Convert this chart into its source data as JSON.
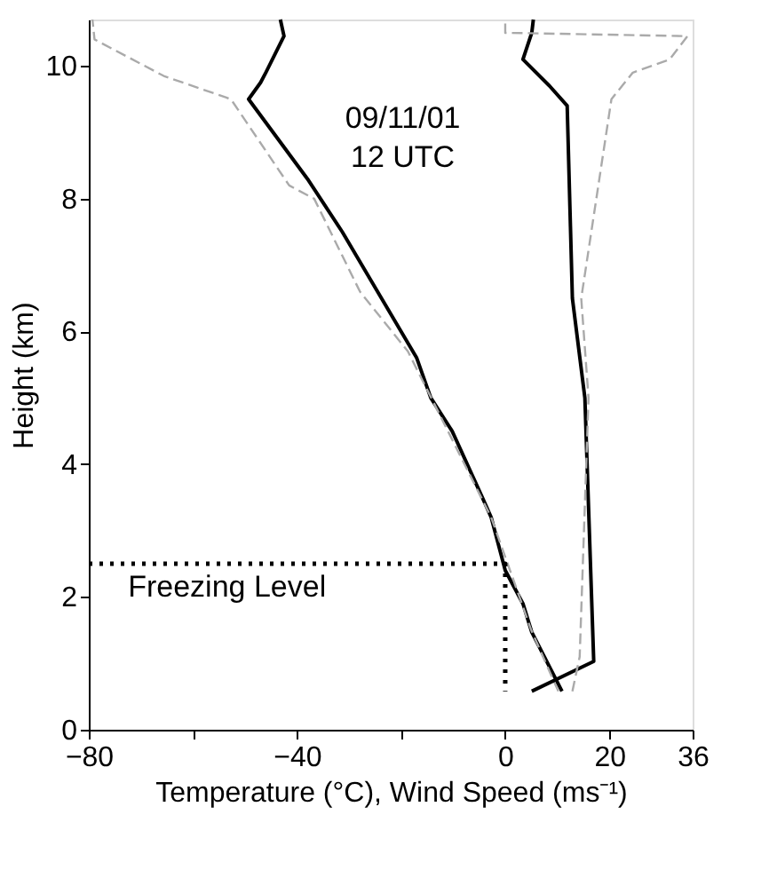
{
  "chart_data": {
    "type": "line",
    "xlabel": "Temperature (°C), Wind Speed (ms⁻¹)",
    "ylabel": "Height (km)",
    "xlim": [
      -80,
      36
    ],
    "xticks": [
      -80,
      {
        "value": -60,
        "label": null
      },
      -40,
      {
        "value": -20,
        "label": null
      },
      0,
      20,
      36
    ],
    "ylim": [
      0,
      10.7
    ],
    "yticks": [
      0,
      2,
      4,
      6,
      8,
      10
    ],
    "grid": false,
    "series": [
      {
        "color": "#000000",
        "line_style": "solid",
        "x": [
          10.9,
          5.1,
          3.4,
          0,
          -2.7,
          -4.4,
          -10.2,
          -14.3,
          -17,
          -31.3,
          -38,
          -49.3,
          -47,
          -46,
          -42.5,
          -43.2
        ],
        "values": [
          0.58,
          1.47,
          1.9,
          2.4,
          3.2,
          3.5,
          4.5,
          5.0,
          5.6,
          7.5,
          8.3,
          9.5,
          9.75,
          9.9,
          10.45,
          10.7
        ]
      },
      {
        "color": "#aaaaaa",
        "line_style": "dashed",
        "x": [
          10.2,
          5,
          -2.7,
          -18.7,
          -27.9,
          -36.7,
          -41.5,
          -52.7,
          -65.6,
          -78.9,
          -79.3
        ],
        "values": [
          0.58,
          1.5,
          3.2,
          5.7,
          6.6,
          8.0,
          8.2,
          9.5,
          9.85,
          10.4,
          10.7
        ]
      },
      {
        "color": "#000000",
        "line_style": "solid",
        "x": [
          5.1,
          17,
          15.3,
          12.9,
          11.9,
          8.5,
          3.4,
          5.1,
          5.4
        ],
        "values": [
          0.58,
          1.03,
          5.0,
          6.5,
          9.4,
          9.7,
          10.1,
          10.5,
          10.7
        ]
      },
      {
        "color": "#aaaaaa",
        "line_style": "dashed",
        "x": [
          12.9,
          14.3,
          16,
          14.6,
          20.4,
          24.5,
          31.6,
          35,
          0,
          0
        ],
        "values": [
          0.58,
          1.1,
          5.0,
          6.5,
          9.5,
          9.9,
          10.1,
          10.45,
          10.5,
          10.7
        ]
      },
      {
        "color": "#000000",
        "line_style": "dotted",
        "x": [
          -80,
          0,
          0
        ],
        "values": [
          2.5,
          2.5,
          0.58
        ]
      }
    ],
    "annotations": [
      "09/11/01\n12 UTC",
      "Freezing Level"
    ]
  }
}
